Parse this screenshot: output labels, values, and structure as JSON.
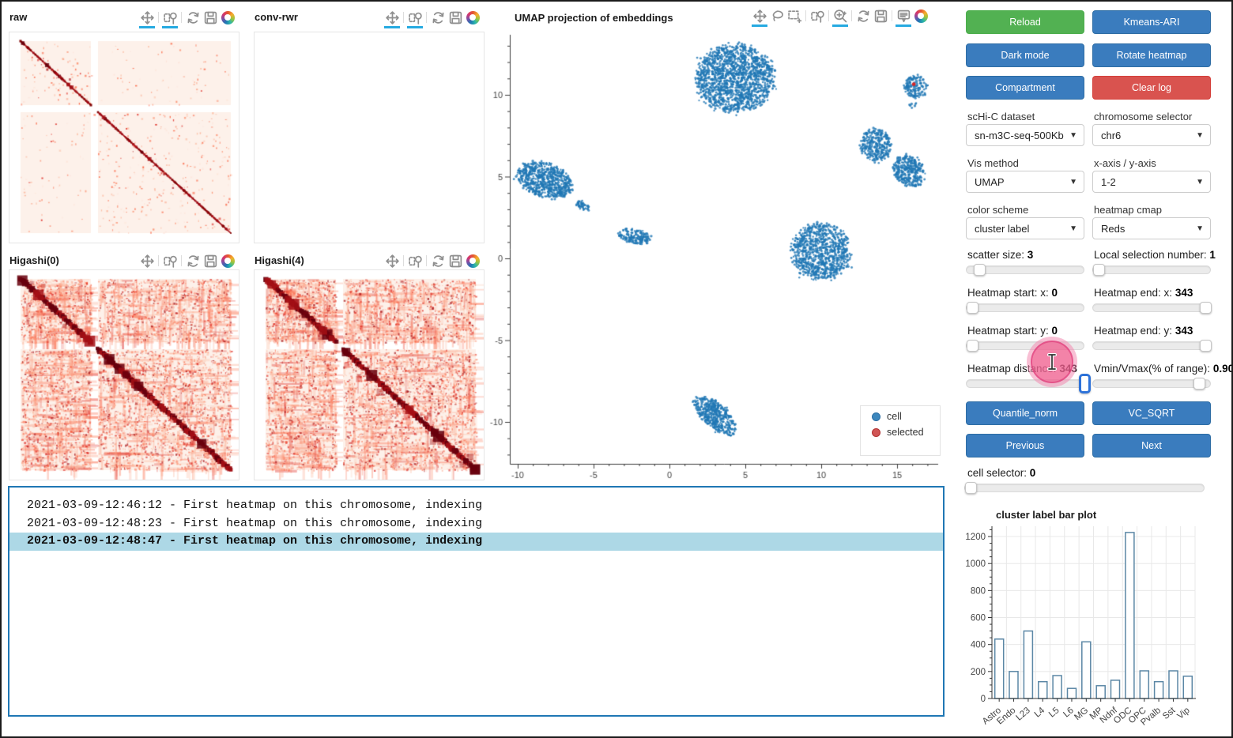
{
  "panels": {
    "raw": {
      "title": "raw"
    },
    "conv_rwr": {
      "title": "conv-rwr"
    },
    "higashi0": {
      "title": "Higashi(0)"
    },
    "higashi4": {
      "title": "Higashi(4)"
    }
  },
  "umap": {
    "title": "UMAP projection of embeddings",
    "legend": {
      "items": [
        {
          "label": "cell",
          "color": "#3182bd"
        },
        {
          "label": "selected",
          "color": "#d62728"
        }
      ]
    }
  },
  "toolbars": {
    "small": {
      "icons": [
        "pan",
        "box-zoom",
        "reset",
        "save",
        "bokeh-logo"
      ],
      "active": [
        "pan",
        "box-zoom"
      ],
      "sep_before": [
        "box-zoom",
        "reset"
      ]
    },
    "umap": {
      "icons": [
        "pan",
        "lasso-select",
        "box-select",
        "box-zoom",
        "wheel-zoom",
        "reset",
        "save",
        "hover",
        "bokeh-logo"
      ],
      "active": [
        "pan",
        "wheel-zoom",
        "hover"
      ],
      "sep_before": [
        "box-zoom",
        "wheel-zoom",
        "reset",
        "hover"
      ]
    }
  },
  "sidebar": {
    "buttons": {
      "reload": "Reload",
      "kmeans_ari": "Kmeans-ARI",
      "dark_mode": "Dark mode",
      "rotate_heatmap": "Rotate heatmap",
      "compartment": "Compartment",
      "clear_log": "Clear log",
      "quantile_norm": "Quantile_norm",
      "vc_sqrt": "VC_SQRT",
      "previous": "Previous",
      "next": "Next"
    },
    "selects": [
      {
        "id": "dataset",
        "label": "scHi-C dataset",
        "value": "sn-m3C-seq-500Kb"
      },
      {
        "id": "chromosome",
        "label": "chromosome selector",
        "value": "chr6"
      },
      {
        "id": "vis_method",
        "label": "Vis method",
        "value": "UMAP"
      },
      {
        "id": "axes",
        "label": "x-axis / y-axis",
        "value": "1-2"
      },
      {
        "id": "color_scheme",
        "label": "color scheme",
        "value": "cluster label"
      },
      {
        "id": "heatmap_cmap",
        "label": "heatmap cmap",
        "value": "Reds"
      }
    ],
    "sliders": [
      {
        "id": "scatter_size",
        "label": "scatter size: ",
        "value": "3",
        "frac": 0.07
      },
      {
        "id": "local_selection_number",
        "label": "Local selection number: ",
        "value": "1",
        "frac": 0.0
      },
      {
        "id": "heatmap_start_x",
        "label": "Heatmap start: x: ",
        "value": "0",
        "frac": 0.0
      },
      {
        "id": "heatmap_end_x",
        "label": "Heatmap end: x: ",
        "value": "343",
        "frac": 1.0
      },
      {
        "id": "heatmap_start_y",
        "label": "Heatmap start: y: ",
        "value": "0",
        "frac": 0.0
      },
      {
        "id": "heatmap_end_y",
        "label": "Heatmap end: y: ",
        "value": "343",
        "frac": 1.0
      },
      {
        "id": "heatmap_distance",
        "label": "Heatmap distance: ",
        "value": "343",
        "frac": 1.0,
        "focused": true
      },
      {
        "id": "vmin_vmax",
        "label": "Vmin/Vmax(% of range): ",
        "value": "0.90",
        "frac": 0.94
      }
    ],
    "cell_selector": {
      "label": "cell selector: ",
      "value": "0",
      "frac": 0.0
    }
  },
  "log": {
    "lines": [
      {
        "text": "2021-03-09-12:46:12 - First heatmap on this chromosome, indexing",
        "highlight": false
      },
      {
        "text": "2021-03-09-12:48:23 - First heatmap on this chromosome, indexing",
        "highlight": false
      },
      {
        "text": "2021-03-09-12:48:47 - First heatmap on this chromosome, indexing",
        "highlight": true
      }
    ]
  },
  "cursor": {
    "shape": "ibeam-click-highlight",
    "color": "#ec4899"
  },
  "theme": {
    "primary_button": "#3a7cbe",
    "success_button": "#52b152",
    "danger_button": "#d9534f",
    "active_tool_underline": "#26aae1",
    "log_border": "#1f77b4",
    "log_highlight": "#add8e6",
    "heatmap_colormap": "Reds"
  },
  "chart_data": [
    {
      "id": "umap_scatter",
      "type": "scatter",
      "title": "UMAP projection of embeddings",
      "xlim": [
        -10.5,
        17.8
      ],
      "ylim": [
        -12.6,
        13.7
      ],
      "xticks": [
        -10,
        -5,
        0,
        5,
        10,
        15
      ],
      "yticks": [
        -10,
        -5,
        0,
        5,
        10
      ],
      "grid": false,
      "legend_position": "bottom-right",
      "legend": [
        "cell",
        "selected"
      ],
      "point_color": "#1f77b4",
      "selected_color": "#d62728",
      "selected_point": [
        16.1,
        10.65
      ],
      "clusters": [
        {
          "name": "top-center",
          "cx": 4.3,
          "cy": 11.0,
          "rx": 2.6,
          "ry": 2.1,
          "rot": 0,
          "n": 1500
        },
        {
          "name": "top-right-small",
          "cx": 16.25,
          "cy": 10.5,
          "rx": 0.8,
          "ry": 0.7,
          "rot": 0,
          "n": 150
        },
        {
          "name": "top-right-strays",
          "cx": 16.05,
          "cy": 9.35,
          "rx": 0.3,
          "ry": 0.18,
          "rot": 0,
          "n": 7
        },
        {
          "name": "right-lobe-a",
          "cx": 13.6,
          "cy": 6.9,
          "rx": 1.05,
          "ry": 1.0,
          "rot": -35,
          "n": 300
        },
        {
          "name": "right-lobe-b",
          "cx": 15.8,
          "cy": 5.3,
          "rx": 1.1,
          "ry": 0.9,
          "rot": -35,
          "n": 330
        },
        {
          "name": "left",
          "cx": -8.2,
          "cy": 4.8,
          "rx": 1.85,
          "ry": 1.05,
          "rot": -16,
          "n": 680
        },
        {
          "name": "left-tail",
          "cx": -5.7,
          "cy": 3.2,
          "rx": 0.5,
          "ry": 0.28,
          "rot": -30,
          "n": 45
        },
        {
          "name": "mid-small",
          "cx": -2.3,
          "cy": 1.35,
          "rx": 1.1,
          "ry": 0.45,
          "rot": -8,
          "n": 170
        },
        {
          "name": "center-right",
          "cx": 10.0,
          "cy": 0.4,
          "rx": 1.95,
          "ry": 1.75,
          "rot": 0,
          "n": 880
        },
        {
          "name": "bottom-banana",
          "cx": 3.0,
          "cy": -9.6,
          "rx": 1.65,
          "ry": 0.75,
          "rot": -40,
          "n": 440
        }
      ]
    },
    {
      "id": "cluster_label_bar",
      "type": "bar",
      "title": "cluster label bar plot",
      "categories": [
        "Astro",
        "Endo",
        "L23",
        "L4",
        "L5",
        "L6",
        "MG",
        "MP",
        "Ndnf",
        "ODC",
        "OPC",
        "Pvalb",
        "Sst",
        "Vip"
      ],
      "values": [
        440,
        200,
        500,
        125,
        170,
        75,
        420,
        95,
        135,
        1230,
        205,
        125,
        205,
        165
      ],
      "xlabel": "",
      "ylabel": "",
      "yticks": [
        0,
        200,
        400,
        600,
        800,
        1000,
        1200
      ],
      "ylim": [
        0,
        1280
      ],
      "grid": true,
      "bar_fill": "#ffffff",
      "bar_stroke": "#5b87a5"
    }
  ]
}
